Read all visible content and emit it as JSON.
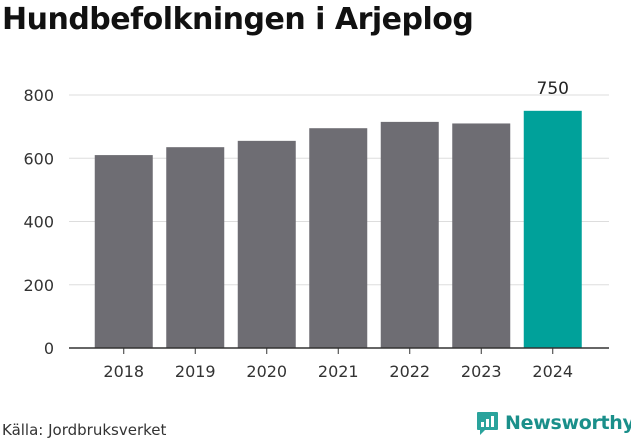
{
  "title": "Hundbefolkningen i Arjeplog",
  "source": "Källa: Jordbruksverket",
  "brand": {
    "name": "Newsworthy",
    "icon": "newsworthy-logo-icon"
  },
  "colors": {
    "bar": "#6e6d73",
    "highlight": "#00a19a",
    "grid": "#dddddd",
    "axis": "#333333",
    "brand": "#1a8f8a"
  },
  "chart_data": {
    "type": "bar",
    "title": "Hundbefolkningen i Arjeplog",
    "xlabel": "",
    "ylabel": "",
    "categories": [
      "2018",
      "2019",
      "2020",
      "2021",
      "2022",
      "2023",
      "2024"
    ],
    "values": [
      610,
      635,
      655,
      695,
      715,
      710,
      750
    ],
    "highlight_index": 6,
    "data_labels": [
      {
        "index": 6,
        "text": "750"
      }
    ],
    "ylim": [
      0,
      800
    ],
    "yticks": [
      0,
      200,
      400,
      600,
      800
    ],
    "grid": true,
    "legend": "none"
  }
}
